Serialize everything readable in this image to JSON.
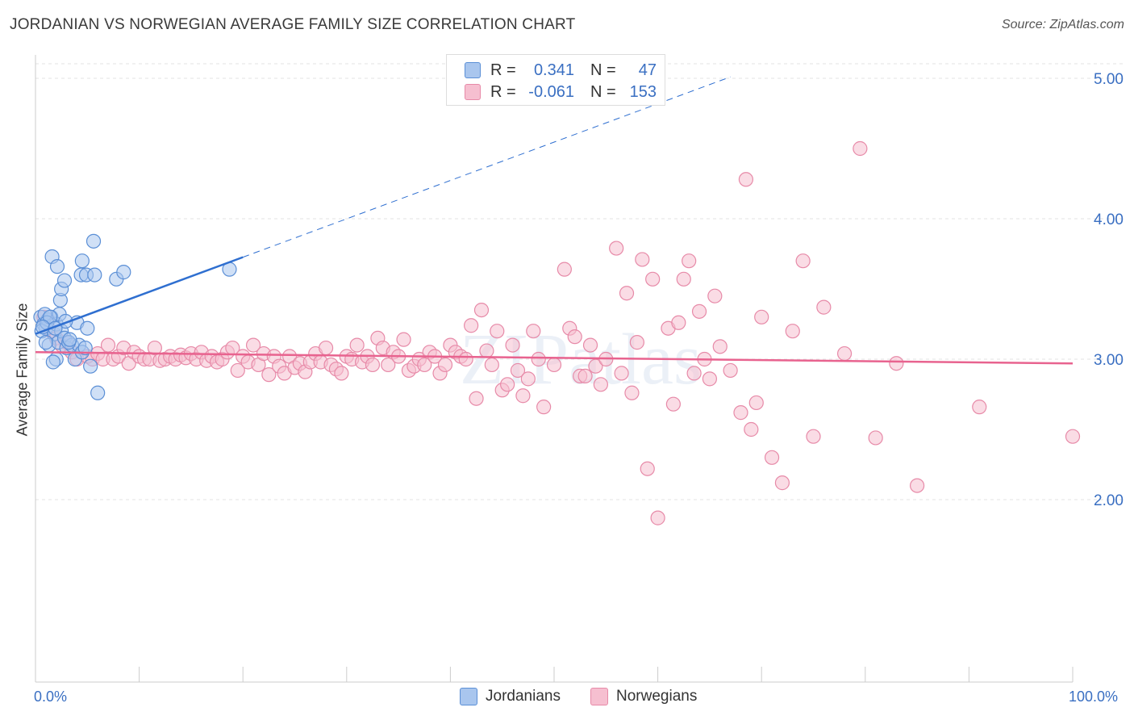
{
  "title": "JORDANIAN VS NORWEGIAN AVERAGE FAMILY SIZE CORRELATION CHART",
  "source": "Source: ZipAtlas.com",
  "watermark": "ZIPatlas",
  "legend": {
    "rows": [
      {
        "r_label": "R =",
        "r_value": "0.341",
        "n_label": "N =",
        "n_value": "47"
      },
      {
        "r_label": "R =",
        "r_value": "-0.061",
        "n_label": "N =",
        "n_value": "153"
      }
    ]
  },
  "bottom_legend": [
    "Jordanians",
    "Norwegians"
  ],
  "colors": {
    "jordanians_fill": "#a9c6ee",
    "jordanians_stroke": "#5b8fd6",
    "jordanians_line": "#2f6fd0",
    "norwegians_fill": "#f6bfd0",
    "norwegians_stroke": "#e78aa8",
    "norwegians_line": "#e8638f",
    "axis_label": "#3a6fc2",
    "grid": "#e3e3e3"
  },
  "chart_data": {
    "type": "scatter",
    "title": "JORDANIAN VS NORWEGIAN AVERAGE FAMILY SIZE CORRELATION CHART",
    "xlabel": "",
    "ylabel": "Average Family Size",
    "xlim": [
      0,
      100
    ],
    "ylim": [
      1.0,
      5.2
    ],
    "x_tick_labels": [
      "0.0%",
      "100.0%"
    ],
    "y_ticks": [
      2.0,
      3.0,
      4.0,
      5.0
    ],
    "y_tick_labels": [
      "2.00",
      "3.00",
      "4.00",
      "5.00"
    ],
    "grid": true,
    "series": [
      {
        "name": "Jordanians",
        "trend": {
          "x0": 0,
          "y0": 3.18,
          "x1": 67,
          "y1": 5.01,
          "solid_until_x": 20
        },
        "points": [
          [
            0.5,
            3.3
          ],
          [
            0.8,
            3.25
          ],
          [
            1.0,
            3.22
          ],
          [
            1.2,
            3.28
          ],
          [
            0.6,
            3.2
          ],
          [
            1.5,
            3.3
          ],
          [
            1.8,
            3.18
          ],
          [
            0.9,
            3.32
          ],
          [
            2.0,
            3.25
          ],
          [
            1.3,
            3.1
          ],
          [
            2.2,
            3.12
          ],
          [
            2.5,
            3.2
          ],
          [
            2.8,
            3.15
          ],
          [
            3.0,
            3.08
          ],
          [
            3.5,
            3.1
          ],
          [
            4.0,
            3.26
          ],
          [
            3.8,
            3.0
          ],
          [
            4.2,
            3.1
          ],
          [
            3.2,
            3.12
          ],
          [
            2.0,
            3.0
          ],
          [
            1.7,
            2.98
          ],
          [
            4.5,
            3.05
          ],
          [
            5.0,
            3.22
          ],
          [
            5.3,
            2.95
          ],
          [
            6.0,
            2.76
          ],
          [
            1.0,
            3.12
          ],
          [
            1.6,
            3.73
          ],
          [
            2.1,
            3.66
          ],
          [
            2.4,
            3.42
          ],
          [
            2.5,
            3.5
          ],
          [
            2.8,
            3.56
          ],
          [
            4.4,
            3.6
          ],
          [
            4.5,
            3.7
          ],
          [
            4.9,
            3.6
          ],
          [
            5.7,
            3.6
          ],
          [
            5.6,
            3.84
          ],
          [
            7.8,
            3.57
          ],
          [
            8.5,
            3.62
          ],
          [
            18.7,
            3.64
          ],
          [
            2.3,
            3.32
          ],
          [
            1.1,
            3.26
          ],
          [
            1.4,
            3.3
          ],
          [
            3.3,
            3.14
          ],
          [
            2.9,
            3.27
          ],
          [
            0.7,
            3.23
          ],
          [
            1.9,
            3.22
          ],
          [
            4.8,
            3.08
          ]
        ]
      },
      {
        "name": "Norwegians",
        "trend": {
          "x0": 0,
          "y0": 3.05,
          "x1": 100,
          "y1": 2.97
        },
        "points": [
          [
            0.8,
            3.3
          ],
          [
            1.2,
            3.28
          ],
          [
            1.5,
            3.2
          ],
          [
            2.0,
            3.15
          ],
          [
            2.5,
            3.1
          ],
          [
            3.0,
            3.12
          ],
          [
            3.5,
            3.05
          ],
          [
            4.0,
            3.0
          ],
          [
            5.0,
            3.02
          ],
          [
            5.5,
            3.0
          ],
          [
            6.0,
            3.04
          ],
          [
            6.5,
            3.0
          ],
          [
            7.0,
            3.1
          ],
          [
            7.5,
            3.0
          ],
          [
            8.0,
            3.02
          ],
          [
            8.5,
            3.08
          ],
          [
            9.0,
            2.97
          ],
          [
            9.5,
            3.05
          ],
          [
            10.0,
            3.02
          ],
          [
            10.5,
            3.0
          ],
          [
            11.0,
            3.0
          ],
          [
            11.5,
            3.08
          ],
          [
            12.0,
            2.99
          ],
          [
            12.5,
            3.0
          ],
          [
            13.0,
            3.02
          ],
          [
            13.5,
            3.0
          ],
          [
            14.0,
            3.03
          ],
          [
            14.5,
            3.01
          ],
          [
            15.0,
            3.04
          ],
          [
            15.5,
            3.0
          ],
          [
            16.0,
            3.05
          ],
          [
            16.5,
            2.99
          ],
          [
            17.0,
            3.02
          ],
          [
            17.5,
            2.98
          ],
          [
            18.0,
            3.0
          ],
          [
            18.5,
            3.05
          ],
          [
            19.0,
            3.08
          ],
          [
            19.5,
            2.92
          ],
          [
            20.0,
            3.02
          ],
          [
            20.5,
            2.98
          ],
          [
            21.0,
            3.1
          ],
          [
            21.5,
            2.96
          ],
          [
            22.0,
            3.04
          ],
          [
            22.5,
            2.89
          ],
          [
            23.0,
            3.02
          ],
          [
            23.5,
            2.95
          ],
          [
            24.0,
            2.9
          ],
          [
            24.5,
            3.02
          ],
          [
            25.0,
            2.94
          ],
          [
            25.5,
            2.97
          ],
          [
            26.0,
            2.91
          ],
          [
            26.5,
            2.98
          ],
          [
            27.0,
            3.04
          ],
          [
            27.5,
            2.98
          ],
          [
            28.0,
            3.08
          ],
          [
            28.5,
            2.96
          ],
          [
            29.0,
            2.93
          ],
          [
            29.5,
            2.9
          ],
          [
            30.0,
            3.02
          ],
          [
            30.5,
            3.0
          ],
          [
            31.0,
            3.1
          ],
          [
            31.5,
            2.98
          ],
          [
            32.0,
            3.02
          ],
          [
            32.5,
            2.96
          ],
          [
            33.0,
            3.15
          ],
          [
            33.5,
            3.08
          ],
          [
            34.0,
            2.96
          ],
          [
            34.5,
            3.05
          ],
          [
            35.0,
            3.02
          ],
          [
            35.5,
            3.14
          ],
          [
            36.0,
            2.92
          ],
          [
            36.5,
            2.95
          ],
          [
            37.0,
            3.0
          ],
          [
            37.5,
            2.96
          ],
          [
            38.0,
            3.05
          ],
          [
            38.5,
            3.02
          ],
          [
            39.0,
            2.9
          ],
          [
            39.5,
            2.96
          ],
          [
            40.0,
            3.1
          ],
          [
            40.5,
            3.05
          ],
          [
            41.0,
            3.02
          ],
          [
            41.5,
            3.0
          ],
          [
            42.0,
            3.24
          ],
          [
            42.5,
            2.72
          ],
          [
            43.0,
            3.35
          ],
          [
            43.5,
            3.06
          ],
          [
            44.0,
            2.96
          ],
          [
            44.5,
            3.2
          ],
          [
            45.0,
            2.78
          ],
          [
            45.5,
            2.82
          ],
          [
            46.0,
            3.1
          ],
          [
            46.5,
            2.92
          ],
          [
            47.0,
            2.74
          ],
          [
            47.5,
            2.86
          ],
          [
            48.0,
            3.2
          ],
          [
            48.5,
            3.0
          ],
          [
            49.0,
            2.66
          ],
          [
            50.0,
            2.96
          ],
          [
            51.0,
            3.64
          ],
          [
            51.5,
            3.22
          ],
          [
            52.0,
            3.16
          ],
          [
            52.5,
            2.88
          ],
          [
            53.0,
            2.88
          ],
          [
            53.5,
            3.1
          ],
          [
            54.0,
            2.95
          ],
          [
            54.5,
            2.82
          ],
          [
            55.0,
            3.0
          ],
          [
            56.0,
            3.79
          ],
          [
            56.5,
            2.9
          ],
          [
            57.0,
            3.47
          ],
          [
            57.5,
            2.76
          ],
          [
            58.0,
            3.12
          ],
          [
            58.5,
            3.71
          ],
          [
            59.0,
            2.22
          ],
          [
            59.5,
            3.57
          ],
          [
            60.0,
            1.87
          ],
          [
            61.0,
            3.22
          ],
          [
            61.5,
            2.68
          ],
          [
            62.0,
            3.26
          ],
          [
            62.5,
            3.57
          ],
          [
            63.0,
            3.7
          ],
          [
            63.5,
            2.9
          ],
          [
            64.0,
            3.34
          ],
          [
            64.5,
            3.0
          ],
          [
            65.0,
            2.86
          ],
          [
            65.5,
            3.45
          ],
          [
            66.0,
            3.09
          ],
          [
            67.0,
            2.92
          ],
          [
            68.0,
            2.62
          ],
          [
            68.5,
            4.28
          ],
          [
            69.0,
            2.5
          ],
          [
            69.5,
            2.69
          ],
          [
            70.0,
            3.3
          ],
          [
            71.0,
            2.3
          ],
          [
            72.0,
            2.12
          ],
          [
            73.0,
            3.2
          ],
          [
            74.0,
            3.7
          ],
          [
            75.0,
            2.45
          ],
          [
            76.0,
            3.37
          ],
          [
            78.0,
            3.04
          ],
          [
            79.5,
            4.5
          ],
          [
            81.0,
            2.44
          ],
          [
            83.0,
            2.97
          ],
          [
            85.0,
            2.1
          ],
          [
            91.0,
            2.66
          ],
          [
            100.0,
            2.45
          ]
        ]
      }
    ]
  }
}
